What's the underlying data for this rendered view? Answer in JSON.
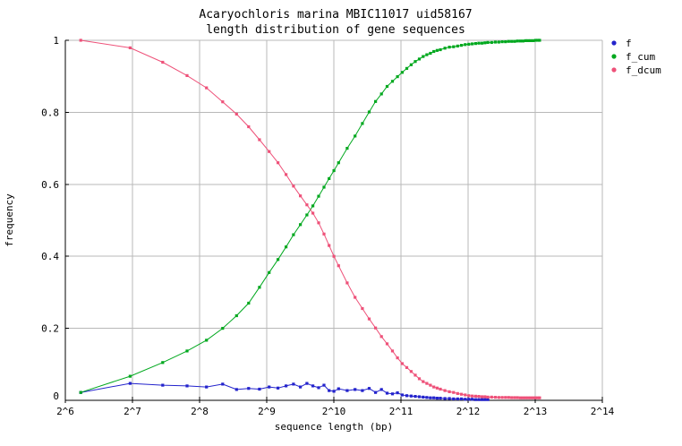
{
  "chart_data": {
    "type": "line",
    "title_line1": "Acaryochloris marina MBIC11017 uid58167",
    "title_line2": "length distribution of gene sequences",
    "xlabel": "sequence length (bp)",
    "ylabel": "frequency",
    "x_scale": "log2",
    "x_range_log2": [
      6,
      14
    ],
    "ylim": [
      0,
      1
    ],
    "grid": true,
    "legend_position": "outside-top-right",
    "x_tick_labels": [
      "2^6",
      "2^7",
      "2^8",
      "2^9",
      "2^10",
      "2^11",
      "2^12",
      "2^13",
      "2^14"
    ],
    "y_tick_labels": [
      "1",
      "0.8",
      "0.6",
      "0.4",
      "0.2",
      "0"
    ],
    "y_tick_values": [
      1,
      0.8,
      0.6,
      0.4,
      0.2,
      0
    ],
    "lengths_bp": [
      75,
      125,
      175,
      225,
      275,
      325,
      375,
      425,
      475,
      525,
      575,
      625,
      675,
      725,
      775,
      825,
      875,
      925,
      975,
      1025,
      1075,
      1175,
      1275,
      1375,
      1475,
      1575,
      1675,
      1775,
      1875,
      1975,
      2075,
      2175,
      2275,
      2375,
      2475,
      2575,
      2675,
      2775,
      2875,
      2975,
      3075,
      3225,
      3375,
      3525,
      3675,
      3825,
      3975,
      4125,
      4275,
      4425,
      4575,
      4725,
      4875,
      5025,
      5225,
      5425,
      5625,
      5825,
      6025,
      6225,
      6425,
      6625,
      6825,
      7025,
      7225,
      7425,
      7625,
      7825,
      8025,
      8225,
      8425,
      8575
    ],
    "series": [
      {
        "name": "f",
        "color": "#2323cc",
        "values": [
          0.022,
          0.047,
          0.042,
          0.04,
          0.037,
          0.045,
          0.03,
          0.033,
          0.031,
          0.037,
          0.034,
          0.04,
          0.045,
          0.037,
          0.047,
          0.04,
          0.035,
          0.042,
          0.027,
          0.025,
          0.032,
          0.027,
          0.03,
          0.027,
          0.033,
          0.022,
          0.03,
          0.02,
          0.018,
          0.021,
          0.015,
          0.013,
          0.012,
          0.011,
          0.01,
          0.009,
          0.008,
          0.007,
          0.007,
          0.006,
          0.006,
          0.005,
          0.005,
          0.004,
          0.004,
          0.004,
          0.003,
          0.003,
          0.003,
          0.002,
          0.002,
          0.002,
          0.002,
          0.002,
          null,
          null,
          null,
          null,
          null,
          null,
          null,
          null,
          null,
          null,
          null,
          null,
          null,
          null,
          null,
          null,
          null,
          null
        ]
      },
      {
        "name": "f_cum",
        "color": "#00a81e",
        "values": [
          0.022,
          0.067,
          0.105,
          0.137,
          0.167,
          0.2,
          0.235,
          0.27,
          0.314,
          0.355,
          0.391,
          0.426,
          0.46,
          0.488,
          0.515,
          0.54,
          0.567,
          0.592,
          0.616,
          0.638,
          0.66,
          0.7,
          0.734,
          0.769,
          0.801,
          0.83,
          0.851,
          0.872,
          0.886,
          0.899,
          0.911,
          0.922,
          0.932,
          0.941,
          0.948,
          0.955,
          0.96,
          0.964,
          0.969,
          0.972,
          0.974,
          0.978,
          0.981,
          0.982,
          0.984,
          0.986,
          0.988,
          0.989,
          0.99,
          0.991,
          0.992,
          0.992,
          0.993,
          0.994,
          0.994,
          0.995,
          0.995,
          0.996,
          0.996,
          0.997,
          0.997,
          0.997,
          0.998,
          0.998,
          0.998,
          0.999,
          0.999,
          0.999,
          0.999,
          1.0,
          1.0,
          1.0
        ]
      },
      {
        "name": "f_dcum",
        "color": "#ee5179",
        "values": [
          1.0,
          0.979,
          0.939,
          0.902,
          0.868,
          0.829,
          0.795,
          0.76,
          0.724,
          0.691,
          0.66,
          0.627,
          0.595,
          0.568,
          0.543,
          0.52,
          0.493,
          0.462,
          0.43,
          0.4,
          0.374,
          0.326,
          0.286,
          0.255,
          0.226,
          0.201,
          0.177,
          0.157,
          0.137,
          0.118,
          0.102,
          0.091,
          0.08,
          0.07,
          0.06,
          0.052,
          0.047,
          0.042,
          0.037,
          0.034,
          0.031,
          0.027,
          0.024,
          0.022,
          0.019,
          0.017,
          0.015,
          0.013,
          0.012,
          0.0115,
          0.011,
          0.01,
          0.01,
          0.009,
          0.009,
          0.0085,
          0.008,
          0.008,
          0.008,
          0.008,
          0.0075,
          0.0075,
          0.0075,
          0.007,
          0.007,
          0.007,
          0.007,
          0.007,
          0.007,
          0.007,
          0.007,
          0.007
        ]
      }
    ],
    "grid_color": "#b8b8b8",
    "border_color": "#000000"
  }
}
